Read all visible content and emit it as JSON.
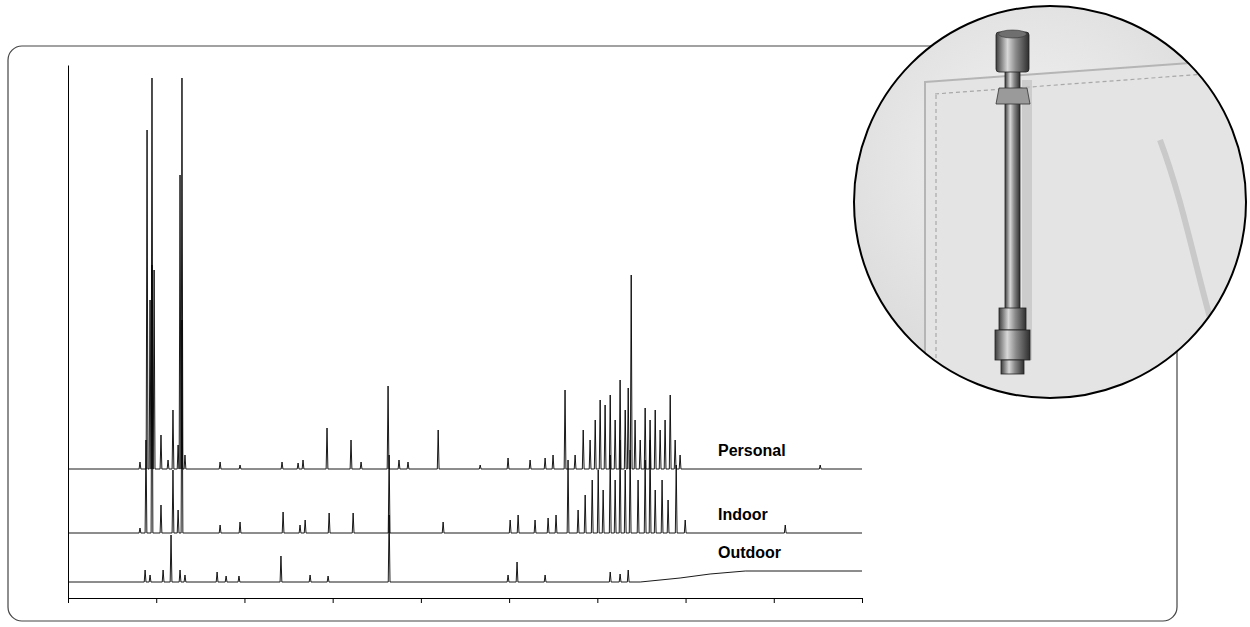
{
  "chart_data": {
    "type": "line",
    "xlim": [
      0,
      45
    ],
    "xticks": [
      0,
      5,
      10,
      15,
      20,
      25,
      30,
      35,
      40,
      45
    ],
    "ylim": [
      0,
      533
    ],
    "yticks": [],
    "tick_labels": false,
    "series": [
      {
        "name": "Personal",
        "color": "#000000",
        "x": [
          0,
          4.03,
          4.08,
          4.13,
          4.43,
          4.48,
          4.53,
          4.6,
          4.65,
          4.7,
          4.71,
          4.76,
          4.81,
          4.83,
          4.88,
          4.93,
          5.22,
          5.27,
          5.32,
          5.62,
          5.67,
          5.72,
          5.9,
          5.95,
          6.0,
          6.19,
          6.24,
          6.29,
          6.3,
          6.35,
          6.4,
          6.41,
          6.46,
          6.51,
          6.58,
          6.63,
          6.68,
          8.57,
          8.62,
          8.67,
          9.7,
          9.75,
          9.8,
          12.08,
          12.13,
          12.18,
          12.99,
          13.04,
          13.09,
          13.27,
          13.32,
          13.37,
          14.63,
          14.68,
          14.73,
          15.99,
          16.04,
          16.09,
          16.56,
          16.61,
          16.66,
          18.09,
          18.14,
          18.19,
          18.71,
          18.76,
          18.81,
          19.22,
          19.27,
          19.32,
          20.93,
          20.98,
          21.03,
          23.31,
          23.36,
          23.41,
          24.89,
          24.94,
          24.99,
          26.14,
          26.19,
          26.24,
          26.99,
          27.04,
          27.09,
          27.44,
          27.49,
          27.54,
          28.12,
          28.17,
          28.22,
          28.69,
          28.74,
          28.79,
          29.15,
          29.2,
          29.25,
          29.54,
          29.59,
          29.64,
          29.83,
          29.88,
          29.93,
          30.11,
          30.16,
          30.21,
          30.39,
          30.44,
          30.49,
          30.68,
          30.73,
          30.78,
          30.96,
          31.01,
          31.06,
          31.24,
          31.29,
          31.34,
          31.53,
          31.58,
          31.63,
          31.7,
          31.75,
          31.8,
          31.87,
          31.92,
          31.97,
          32.09,
          32.14,
          32.19,
          32.38,
          32.43,
          32.48,
          32.66,
          32.71,
          32.76,
          32.94,
          32.99,
          33.04,
          33.23,
          33.28,
          33.33,
          33.51,
          33.56,
          33.61,
          33.79,
          33.84,
          33.89,
          34.08,
          34.13,
          34.18,
          34.36,
          34.41,
          34.46,
          34.64,
          34.69,
          34.74,
          42.58,
          42.63,
          42.68,
          45
        ],
        "values": [
          129,
          129,
          136,
          129,
          129,
          468,
          129,
          129,
          298,
          129,
          129,
          520,
          129,
          129,
          328,
          129,
          129,
          163,
          129,
          129,
          138,
          129,
          129,
          188,
          129,
          129,
          153,
          129,
          129,
          423,
          129,
          129,
          520,
          129,
          129,
          143,
          129,
          129,
          136,
          129,
          129,
          133,
          129,
          129,
          136,
          129,
          129,
          135,
          129,
          129,
          138,
          129,
          129,
          170,
          129,
          129,
          158,
          129,
          129,
          136,
          129,
          129,
          212,
          129,
          129,
          138,
          129,
          129,
          136,
          129,
          129,
          168,
          129,
          129,
          133,
          129,
          129,
          140,
          129,
          129,
          138,
          129,
          129,
          140,
          129,
          129,
          143,
          129,
          129,
          208,
          129,
          129,
          143,
          129,
          129,
          168,
          129,
          129,
          158,
          129,
          129,
          178,
          129,
          129,
          198,
          129,
          129,
          193,
          129,
          129,
          203,
          129,
          129,
          178,
          129,
          129,
          218,
          129,
          129,
          188,
          129,
          129,
          210,
          129,
          129,
          323,
          129,
          129,
          178,
          129,
          129,
          158,
          129,
          129,
          190,
          129,
          129,
          178,
          129,
          129,
          188,
          129,
          129,
          168,
          129,
          129,
          178,
          129,
          129,
          203,
          129,
          129,
          158,
          129,
          129,
          143,
          129,
          129,
          133,
          129,
          129
        ]
      },
      {
        "name": "Indoor",
        "color": "#000000",
        "x": [
          0,
          4.03,
          4.08,
          4.13,
          4.37,
          4.42,
          4.47,
          4.71,
          4.76,
          4.81,
          5.22,
          5.27,
          5.32,
          5.9,
          5.95,
          6.0,
          6.19,
          6.24,
          6.29,
          6.41,
          6.46,
          6.51,
          8.57,
          8.62,
          8.67,
          9.7,
          9.75,
          9.8,
          12.14,
          12.19,
          12.24,
          13.1,
          13.15,
          13.2,
          13.39,
          13.44,
          13.49,
          14.75,
          14.8,
          14.85,
          16.11,
          16.16,
          16.21,
          18.15,
          18.2,
          18.25,
          21.21,
          21.26,
          21.31,
          25.01,
          25.06,
          25.11,
          25.46,
          25.51,
          25.56,
          26.42,
          26.47,
          26.52,
          27.16,
          27.21,
          27.26,
          27.61,
          27.66,
          27.71,
          28.29,
          28.34,
          28.39,
          28.86,
          28.91,
          28.96,
          29.26,
          29.31,
          29.36,
          29.66,
          29.71,
          29.76,
          30.0,
          30.05,
          30.1,
          30.28,
          30.33,
          30.38,
          30.68,
          30.73,
          30.78,
          30.96,
          31.01,
          31.06,
          31.24,
          31.29,
          31.34,
          31.53,
          31.58,
          31.63,
          31.81,
          31.86,
          31.91,
          32.26,
          32.31,
          32.36,
          32.66,
          32.71,
          32.76,
          32.94,
          32.99,
          33.04,
          33.23,
          33.28,
          33.33,
          33.62,
          33.67,
          33.72,
          33.96,
          34.01,
          34.06,
          34.42,
          34.47,
          34.52,
          34.93,
          34.98,
          35.03,
          40.6,
          40.65,
          40.7,
          45
        ],
        "values": [
          65,
          65,
          70,
          65,
          65,
          158,
          65,
          65,
          333,
          65,
          65,
          93,
          65,
          65,
          128,
          65,
          65,
          88,
          65,
          65,
          278,
          65,
          65,
          73,
          65,
          65,
          76,
          65,
          65,
          86,
          65,
          65,
          73,
          65,
          65,
          78,
          65,
          65,
          85,
          65,
          65,
          85,
          65,
          65,
          143,
          65,
          65,
          76,
          65,
          65,
          78,
          65,
          65,
          83,
          65,
          65,
          78,
          65,
          65,
          80,
          65,
          65,
          83,
          65,
          65,
          138,
          65,
          65,
          88,
          65,
          65,
          103,
          65,
          65,
          118,
          65,
          65,
          128,
          65,
          65,
          108,
          65,
          65,
          143,
          65,
          65,
          118,
          65,
          65,
          158,
          65,
          65,
          128,
          65,
          65,
          148,
          65,
          65,
          118,
          65,
          65,
          138,
          65,
          65,
          158,
          65,
          65,
          108,
          65,
          65,
          118,
          65,
          65,
          98,
          65,
          65,
          133,
          65,
          65,
          78,
          65,
          65,
          73,
          65,
          65
        ]
      },
      {
        "name": "Outdoor",
        "color": "#000000",
        "x": [
          0,
          4.32,
          4.37,
          4.42,
          4.6,
          4.65,
          4.7,
          5.34,
          5.39,
          5.44,
          5.79,
          5.84,
          5.89,
          6.3,
          6.35,
          6.4,
          6.58,
          6.63,
          6.68,
          8.4,
          8.45,
          8.5,
          8.91,
          8.96,
          9.01,
          9.64,
          9.69,
          9.74,
          12.02,
          12.07,
          12.12,
          13.67,
          13.72,
          13.77,
          14.69,
          14.74,
          14.79,
          18.15,
          18.2,
          18.25,
          24.89,
          24.94,
          24.99,
          25.4,
          25.45,
          25.5,
          26.99,
          27.04,
          27.09,
          30.68,
          30.73,
          30.78,
          31.24,
          31.29,
          31.34,
          31.7,
          31.75,
          31.8,
          32.43,
          34.69,
          36.39,
          38.38,
          45
        ],
        "values": [
          16,
          16,
          28,
          16,
          16,
          23,
          16,
          16,
          28,
          16,
          16,
          63,
          16,
          16,
          28,
          16,
          16,
          23,
          16,
          16,
          26,
          16,
          16,
          22,
          16,
          16,
          22,
          16,
          16,
          42,
          16,
          16,
          23,
          16,
          16,
          22,
          16,
          16,
          83,
          16,
          16,
          23,
          16,
          16,
          36,
          16,
          16,
          23,
          16,
          16,
          26,
          16,
          16,
          24,
          16,
          16,
          28,
          16,
          16,
          20,
          24,
          27,
          27
        ]
      }
    ]
  }
}
